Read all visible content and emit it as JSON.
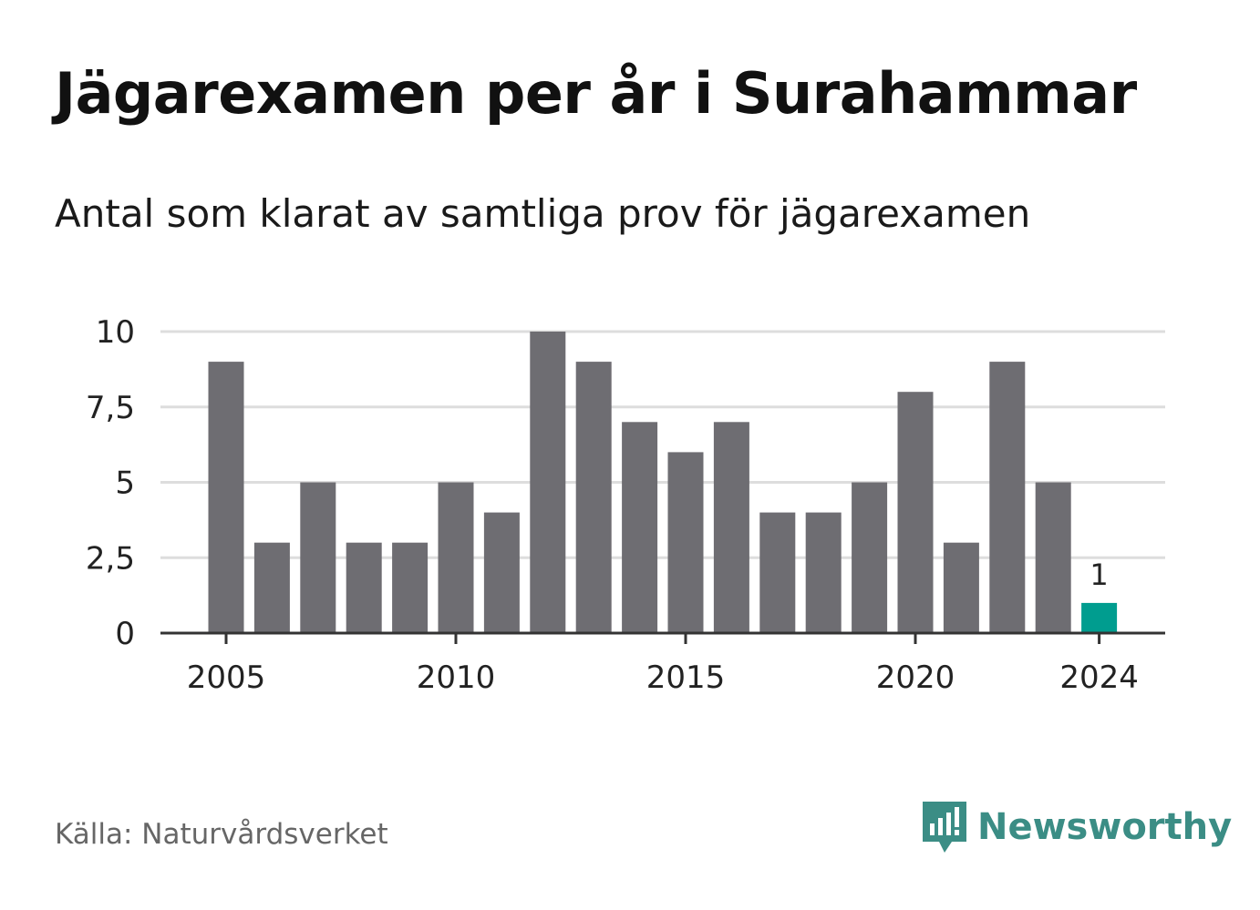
{
  "title": "Jägarexamen per år i Surahammar",
  "subtitle": "Antal som klarat av samtliga prov för jägarexamen",
  "source": "Källa: Naturvårdsverket",
  "brand": {
    "name": "Newsworthy",
    "icon": "newsworthy-logo-icon",
    "color": "#3b8d85"
  },
  "colors": {
    "bar": "#6e6d72",
    "highlight": "#009d8f",
    "grid": "#dddddd",
    "axis": "#333333"
  },
  "chart_data": {
    "type": "bar",
    "categories": [
      "2005",
      "2006",
      "2007",
      "2008",
      "2009",
      "2010",
      "2011",
      "2012",
      "2013",
      "2014",
      "2015",
      "2016",
      "2017",
      "2018",
      "2019",
      "2020",
      "2021",
      "2022",
      "2023",
      "2024"
    ],
    "values": [
      9,
      3,
      5,
      3,
      3,
      5,
      4,
      10,
      9,
      7,
      6,
      7,
      4,
      4,
      5,
      8,
      3,
      9,
      5,
      1
    ],
    "x_tick_labels": [
      "2005",
      "2010",
      "2015",
      "2020",
      "2024"
    ],
    "y_tick_values": [
      0,
      2.5,
      5,
      7.5,
      10
    ],
    "y_tick_labels": [
      "0",
      "2,5",
      "5",
      "7,5",
      "10"
    ],
    "ylim": [
      0,
      10
    ],
    "grid": true,
    "highlight": {
      "category": "2024",
      "label": "1"
    },
    "title": "Jägarexamen per år i Surahammar",
    "xlabel": "",
    "ylabel": ""
  }
}
